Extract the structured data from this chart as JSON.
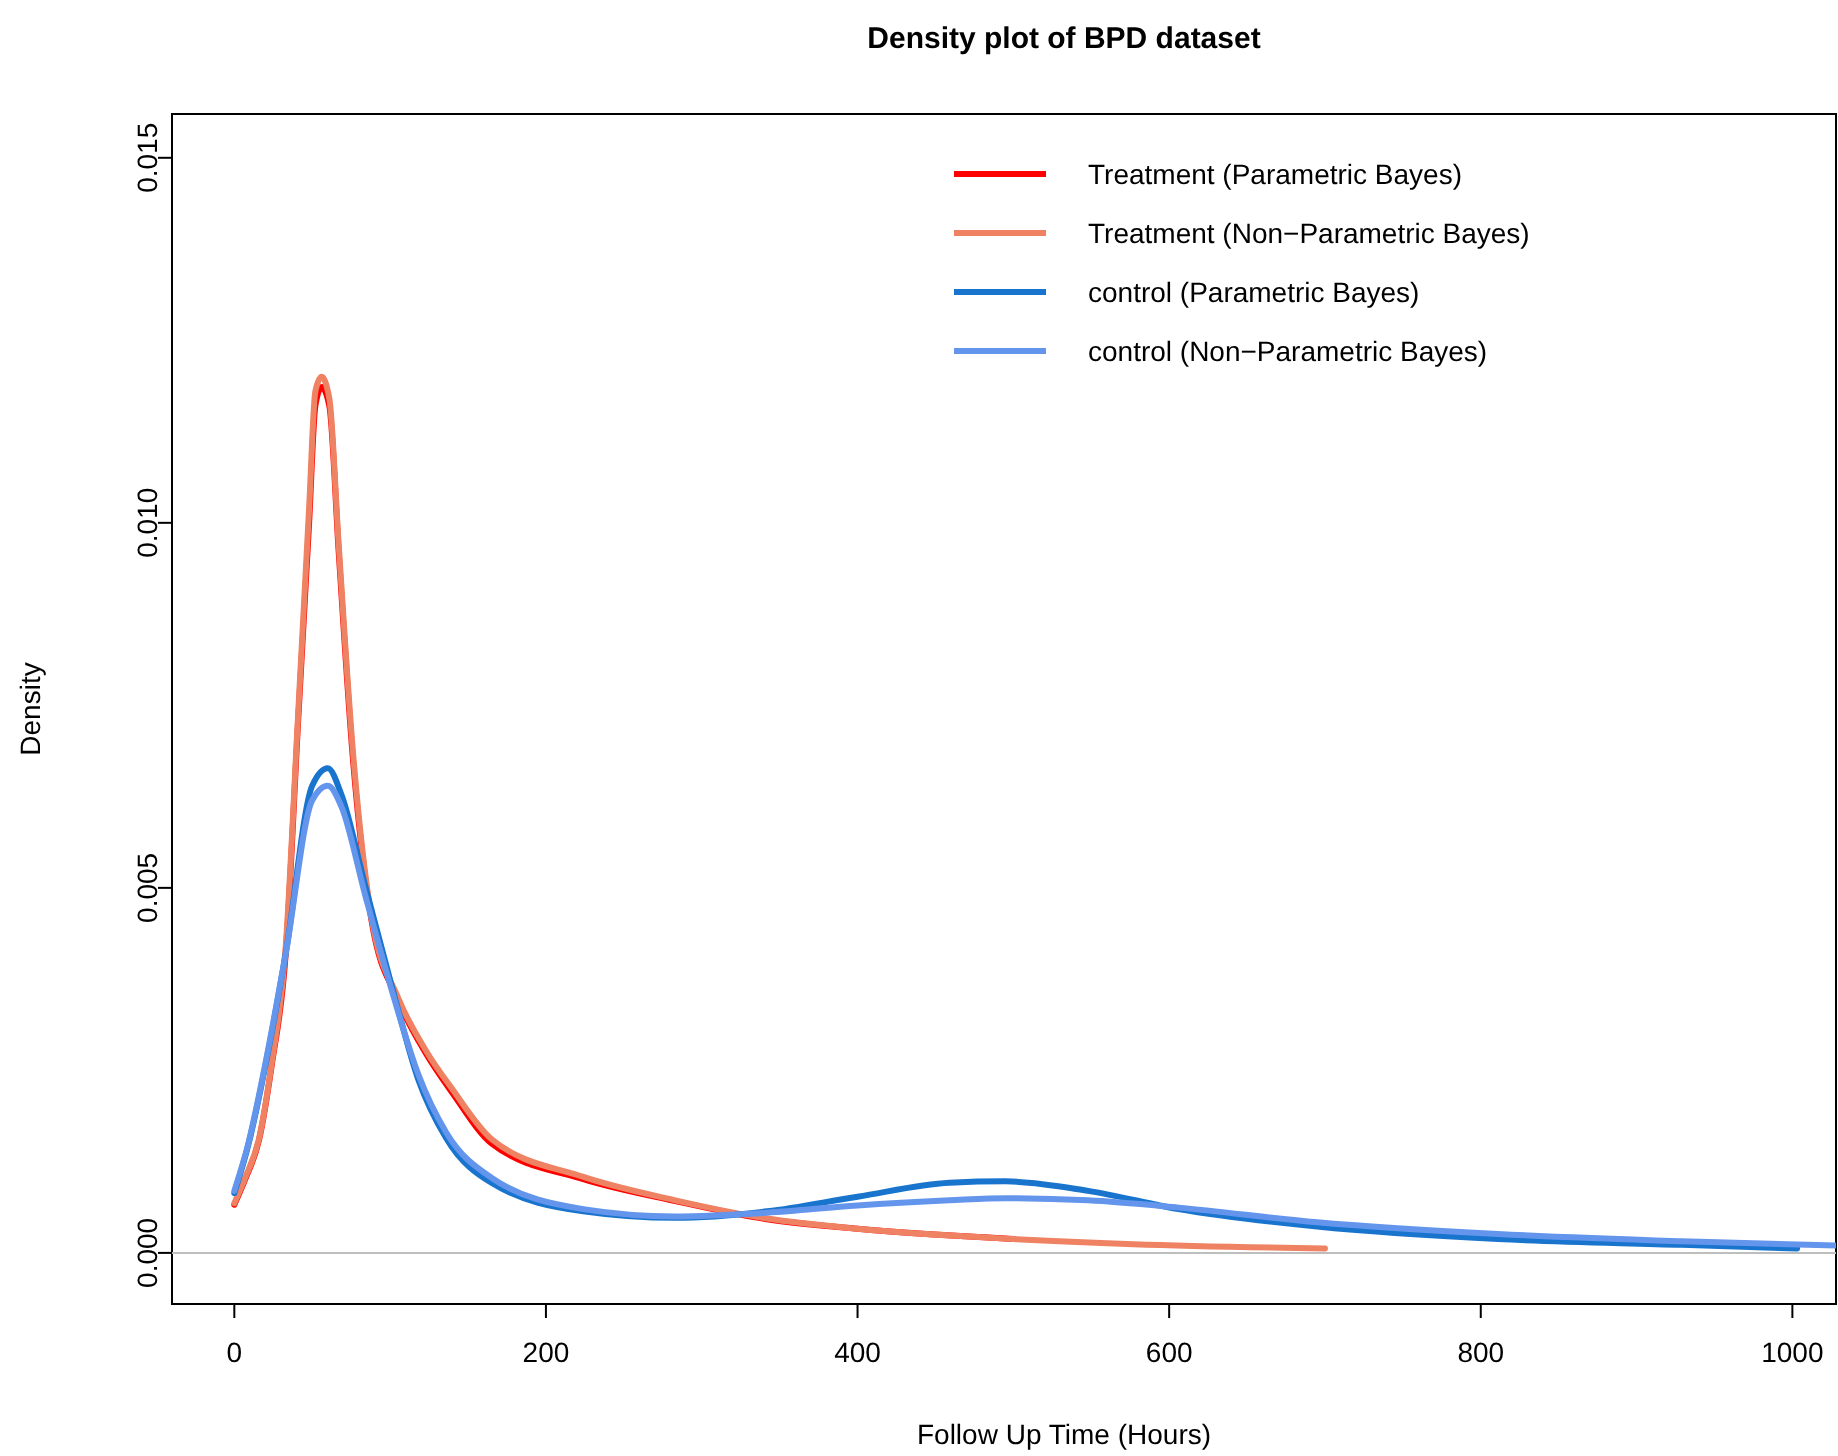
{
  "chart_data": {
    "type": "line",
    "title": "Density plot of BPD dataset",
    "xlabel": "Follow Up Time (Hours)",
    "ylabel": "Density",
    "xlim": [
      -40,
      1028
    ],
    "ylim": [
      -0.0007,
      0.0156
    ],
    "xticks": [
      0,
      200,
      400,
      600,
      800,
      1000
    ],
    "yticks": [
      {
        "value": 0,
        "label": "0.000"
      },
      {
        "value": 0.005,
        "label": "0.005"
      },
      {
        "value": 0.01,
        "label": "0.010"
      },
      {
        "value": 0.015,
        "label": "0.015"
      }
    ],
    "grid": false,
    "legend": "top right",
    "marker": "none",
    "line_style": "solid",
    "ref_lines": [
      {
        "axis": "y",
        "value": 0,
        "color": "#bebebe"
      }
    ],
    "series": [
      {
        "name": "Treatment (Parametric Bayes)",
        "color": "#ff0000",
        "x": [
          0,
          7,
          16,
          24,
          33,
          41,
          48,
          52,
          56,
          61,
          67,
          76,
          88,
          105,
          123,
          140,
          165,
          224,
          283,
          342,
          400,
          500
        ],
        "values": [
          0.00066,
          0.00101,
          0.00156,
          0.00257,
          0.0041,
          0.0073,
          0.01,
          0.0116,
          0.01186,
          0.0116,
          0.0096,
          0.0068,
          0.00456,
          0.00347,
          0.00273,
          0.00219,
          0.0015,
          0.00101,
          0.00071,
          0.00046,
          0.00033,
          0.00019
        ]
      },
      {
        "name": "Treatment (Non−Parametric Bayes)",
        "color": "#ee8262",
        "x": [
          0,
          7,
          16,
          24,
          33,
          41,
          48,
          52,
          56,
          61,
          67,
          76,
          88,
          105,
          123,
          140,
          165,
          224,
          283,
          342,
          400,
          500,
          577,
          700
        ],
        "values": [
          0.00068,
          0.00103,
          0.00158,
          0.0026,
          0.0042,
          0.0074,
          0.0102,
          0.0118,
          0.012,
          0.0117,
          0.0097,
          0.0069,
          0.0046,
          0.0035,
          0.00277,
          0.00224,
          0.00156,
          0.00104,
          0.00072,
          0.00047,
          0.00033,
          0.00019,
          0.00012,
          6e-05
        ]
      },
      {
        "name": "control (Parametric Bayes)",
        "color": "#1874cd",
        "x": [
          0,
          9,
          20,
          33,
          50,
          60,
          69,
          84,
          101,
          118,
          136,
          165,
          224,
          283,
          342,
          400,
          459,
          495,
          548,
          606,
          695,
          811,
          929,
          1003
        ],
        "values": [
          0.00082,
          0.00148,
          0.00257,
          0.0041,
          0.0064,
          0.00664,
          0.00626,
          0.00503,
          0.00366,
          0.00238,
          0.00157,
          0.00096,
          0.00057,
          0.00048,
          0.00057,
          0.00077,
          0.00096,
          0.00098,
          0.00085,
          0.0006,
          0.00036,
          0.00019,
          0.00011,
          6e-05
        ]
      },
      {
        "name": "control (Non−Parametric Bayes)",
        "color": "#6495ed",
        "x": [
          0,
          9,
          20,
          33,
          50,
          60,
          69,
          84,
          101,
          118,
          136,
          165,
          224,
          283,
          342,
          400,
          459,
          495,
          548,
          606,
          695,
          811,
          929,
          1028
        ],
        "values": [
          0.00085,
          0.0015,
          0.0026,
          0.0041,
          0.0062,
          0.0064,
          0.0061,
          0.0049,
          0.0036,
          0.00245,
          0.00165,
          0.00103,
          0.0006,
          0.0005,
          0.00055,
          0.00065,
          0.00072,
          0.00075,
          0.00072,
          0.00062,
          0.00042,
          0.00026,
          0.00016,
          0.0001
        ]
      }
    ]
  }
}
